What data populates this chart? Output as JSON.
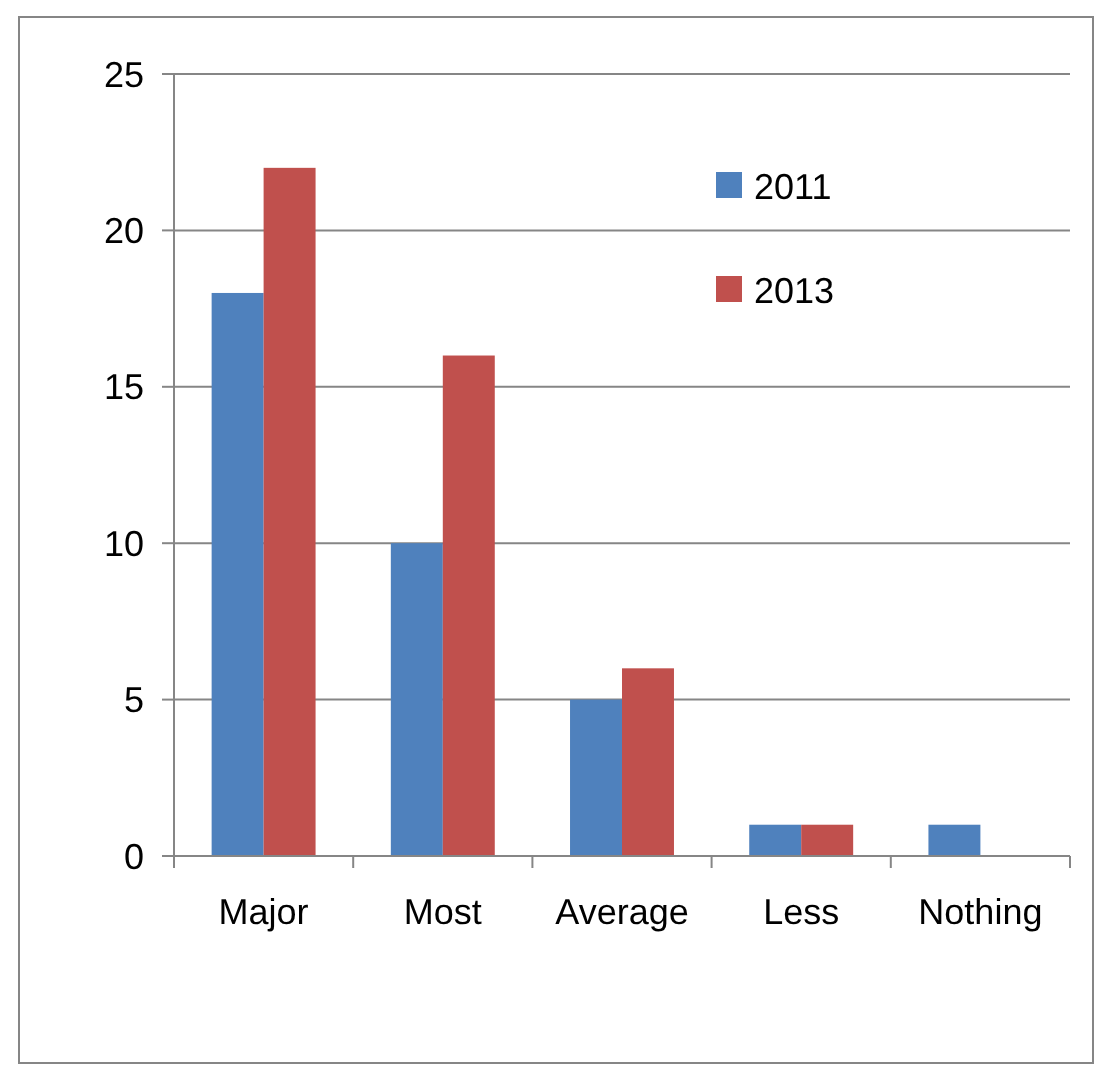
{
  "chart_data": {
    "type": "bar",
    "categories": [
      "Major",
      "Most",
      "Average",
      "Less",
      "Nothing"
    ],
    "series": [
      {
        "name": "2011",
        "color": "#4f81bd",
        "values": [
          18,
          10,
          5,
          1,
          1
        ]
      },
      {
        "name": "2013",
        "color": "#c0504d",
        "values": [
          22,
          16,
          6,
          1,
          0
        ]
      }
    ],
    "ylim": [
      0,
      25
    ],
    "yticks": [
      0,
      5,
      10,
      15,
      20,
      25
    ],
    "grid": "y",
    "legend": "top right"
  }
}
